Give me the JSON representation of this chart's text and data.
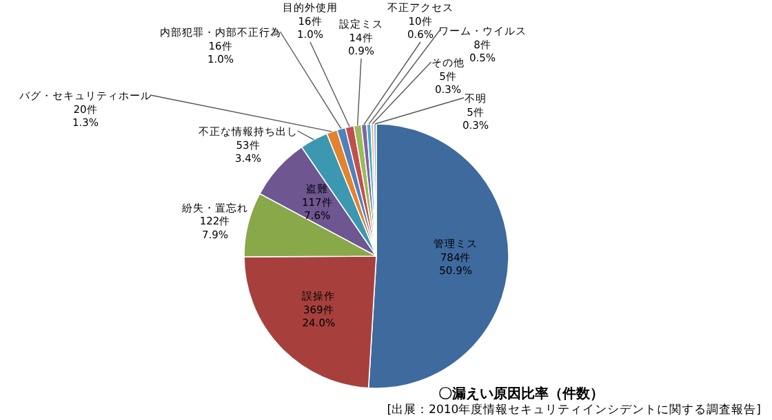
{
  "chart_data": {
    "type": "pie",
    "title": "〇漏えい原因比率（件数）",
    "annotations": [
      "[出展：2010年度情報セキュリティインシデントに関する調査報告]"
    ],
    "categories": [
      "管理ミス",
      "誤操作",
      "紛失・置忘れ",
      "盗難",
      "不正な情報持ち出し",
      "バグ・セキュリティホール",
      "内部犯罪・内部不正行為",
      "目的外使用",
      "設定ミス",
      "不正アクセス",
      "ワーム・ウイルス",
      "その他",
      "不明"
    ],
    "values": [
      784,
      369,
      122,
      117,
      53,
      20,
      16,
      16,
      14,
      10,
      8,
      5,
      5
    ],
    "value_labels": [
      "784件\n50.9%",
      "369件\n24.0%",
      "122件\n7.9%",
      "117件\n7.6%",
      "53件\n3.4%",
      "20件\n1.3%",
      "16件\n1.0%",
      "16件\n1.0%",
      "14件\n0.9%",
      "10件\n0.6%",
      "8件\n0.5%",
      "5件\n0.3%",
      "5件\n0.3%"
    ],
    "colors": [
      "#3e6a9e",
      "#a7403d",
      "#89a84a",
      "#6e5690",
      "#3c97b0",
      "#e3832f",
      "#4f81bd",
      "#c0504d",
      "#9bbb59",
      "#8064a2",
      "#4bacc6",
      "#f9b074",
      "#8db3e2"
    ]
  }
}
